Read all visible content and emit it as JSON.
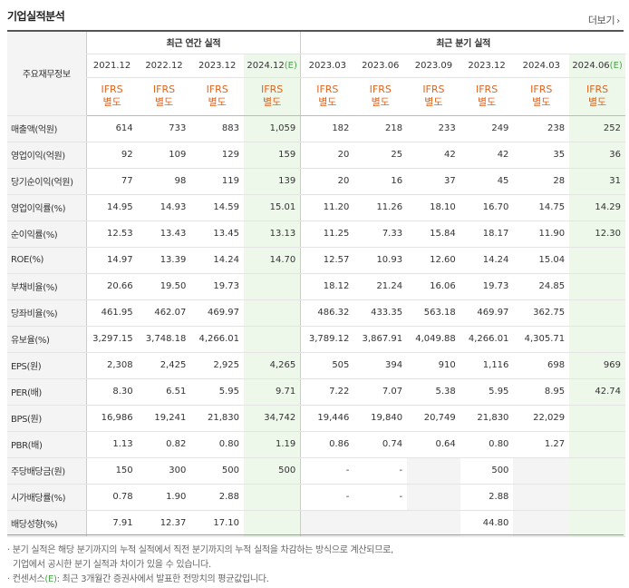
{
  "title": "기업실적분석",
  "more_label": "더보기",
  "header": {
    "corner_label": "주요재무정보",
    "annual_group": "최근 연간 실적",
    "quarter_group": "최근 분기 실적",
    "periods": [
      "2021.12",
      "2022.12",
      "2023.12",
      "2024.12",
      "2023.03",
      "2023.06",
      "2023.09",
      "2023.12",
      "2024.03",
      "2024.06"
    ],
    "estimate_mark": "(E)",
    "ifrs_line1": "IFRS",
    "ifrs_line2": "별도"
  },
  "rows": [
    {
      "label": "매출액(억원)",
      "values": [
        "614",
        "733",
        "883",
        "1,059",
        "182",
        "218",
        "233",
        "249",
        "238",
        "252"
      ]
    },
    {
      "label": "영업이익(억원)",
      "values": [
        "92",
        "109",
        "129",
        "159",
        "20",
        "25",
        "42",
        "42",
        "35",
        "36"
      ]
    },
    {
      "label": "당기순이익(억원)",
      "values": [
        "77",
        "98",
        "119",
        "139",
        "20",
        "16",
        "37",
        "45",
        "28",
        "31"
      ]
    },
    {
      "label": "영업이익률(%)",
      "values": [
        "14.95",
        "14.93",
        "14.59",
        "15.01",
        "11.20",
        "11.26",
        "18.10",
        "16.70",
        "14.75",
        "14.29"
      ]
    },
    {
      "label": "순이익률(%)",
      "values": [
        "12.53",
        "13.43",
        "13.45",
        "13.13",
        "11.25",
        "7.33",
        "15.84",
        "18.17",
        "11.90",
        "12.30"
      ]
    },
    {
      "label": "ROE(%)",
      "values": [
        "14.97",
        "13.39",
        "14.24",
        "14.70",
        "12.57",
        "10.93",
        "12.60",
        "14.24",
        "15.04",
        ""
      ]
    },
    {
      "label": "부채비율(%)",
      "values": [
        "20.66",
        "19.50",
        "19.73",
        "",
        "18.12",
        "21.24",
        "16.06",
        "19.73",
        "24.85",
        ""
      ]
    },
    {
      "label": "당좌비율(%)",
      "values": [
        "461.95",
        "462.07",
        "469.97",
        "",
        "486.32",
        "433.35",
        "563.18",
        "469.97",
        "362.75",
        ""
      ]
    },
    {
      "label": "유보율(%)",
      "values": [
        "3,297.15",
        "3,748.18",
        "4,266.01",
        "",
        "3,789.12",
        "3,867.91",
        "4,049.88",
        "4,266.01",
        "4,305.71",
        ""
      ]
    },
    {
      "label": "EPS(원)",
      "values": [
        "2,308",
        "2,425",
        "2,925",
        "4,265",
        "505",
        "394",
        "910",
        "1,116",
        "698",
        "969"
      ]
    },
    {
      "label": "PER(배)",
      "values": [
        "8.30",
        "6.51",
        "5.95",
        "9.71",
        "7.22",
        "7.07",
        "5.38",
        "5.95",
        "8.95",
        "42.74"
      ]
    },
    {
      "label": "BPS(원)",
      "values": [
        "16,986",
        "19,241",
        "21,830",
        "34,742",
        "19,446",
        "19,840",
        "20,749",
        "21,830",
        "22,029",
        ""
      ]
    },
    {
      "label": "PBR(배)",
      "values": [
        "1.13",
        "0.82",
        "0.80",
        "1.19",
        "0.86",
        "0.74",
        "0.64",
        "0.80",
        "1.27",
        ""
      ]
    },
    {
      "label": "주당배당금(원)",
      "values": [
        "150",
        "300",
        "500",
        "500",
        "-",
        "-",
        "",
        "500",
        "",
        ""
      ]
    },
    {
      "label": "시가배당률(%)",
      "values": [
        "0.78",
        "1.90",
        "2.88",
        "",
        "-",
        "-",
        "",
        "2.88",
        "",
        ""
      ]
    },
    {
      "label": "배당성향(%)",
      "values": [
        "7.91",
        "12.37",
        "17.10",
        "",
        "",
        "",
        "",
        "44.80",
        "",
        ""
      ]
    }
  ],
  "notes": {
    "line1": "· 분기 실적은 해당 분기까지의 누적 실적에서 직전 분기까지의 누적 실적을 차감하는 방식으로 계산되므로,",
    "line2": "  기업에서 공시한 분기 실적과 차이가 있을 수 있습니다.",
    "line3_prefix": "· 컨센서스",
    "line3_mark": "(E)",
    "line3_suffix": ": 최근 3개월간 증권사에서 발표한 전망치의 평균값입니다."
  }
}
